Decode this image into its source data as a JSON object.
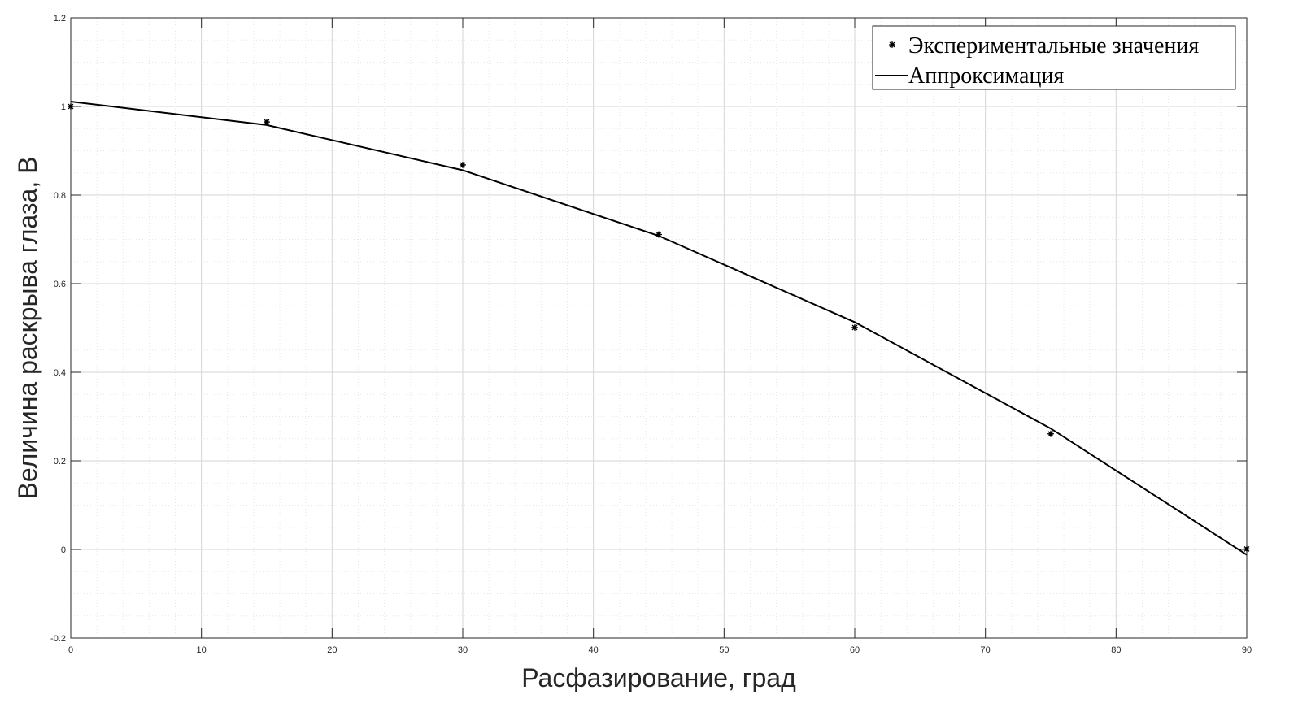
{
  "chart_data": {
    "type": "line",
    "xlabel": "Расфазирование, град",
    "ylabel": "Величина раскрыва глаза, В",
    "xlim": [
      0,
      90
    ],
    "ylim": [
      -0.2,
      1.2
    ],
    "x_ticks": [
      0,
      10,
      20,
      30,
      40,
      50,
      60,
      70,
      80,
      90
    ],
    "y_ticks": [
      -0.2,
      0,
      0.2,
      0.4,
      0.6,
      0.8,
      1,
      1.2
    ],
    "x_tick_labels": [
      "0",
      "10",
      "20",
      "30",
      "40",
      "50",
      "60",
      "70",
      "80",
      "90"
    ],
    "y_tick_labels": [
      "-0.2",
      "0",
      "0.2",
      "0.4",
      "0.6",
      "0.8",
      "1",
      "1.2"
    ],
    "grid": true,
    "minor_grid": true,
    "legend_position": "top-right",
    "series": [
      {
        "name": "Экспериментальные значения",
        "style": "markers",
        "color": "#000000",
        "x": [
          0,
          15,
          30,
          45,
          60,
          75,
          90
        ],
        "y": [
          1.0,
          0.965,
          0.868,
          0.711,
          0.501,
          0.261,
          0.001
        ]
      },
      {
        "name": "Аппроксимация",
        "style": "line",
        "color": "#000000",
        "x": [
          0,
          15,
          30,
          45,
          60,
          75,
          90
        ],
        "y": [
          1.011,
          0.958,
          0.856,
          0.708,
          0.513,
          0.273,
          -0.012
        ]
      }
    ]
  }
}
